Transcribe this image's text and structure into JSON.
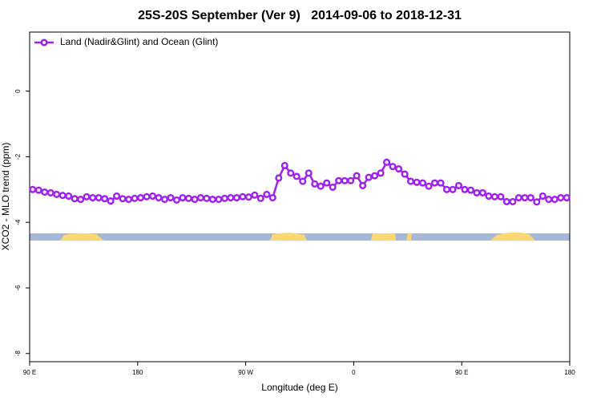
{
  "chart_data": {
    "type": "line",
    "title": "25S-20S September (Ver 9)   2014-09-06 to 2018-12-31",
    "x_label": "Longitude (deg E)",
    "y_label": "XCO2 - MLO trend (ppm)",
    "x": [
      92.5,
      97.5,
      102.5,
      107.5,
      112.5,
      117.5,
      122.5,
      127.5,
      132.5,
      137.5,
      142.5,
      147.5,
      152.5,
      157.5,
      162.5,
      167.5,
      172.5,
      177.5,
      182.5,
      187.5,
      192.5,
      197.5,
      202.5,
      207.5,
      212.5,
      217.5,
      222.5,
      227.5,
      232.5,
      237.5,
      242.5,
      247.5,
      252.5,
      257.5,
      262.5,
      267.5,
      272.5,
      277.5,
      282.5,
      287.5,
      292.5,
      297.5,
      302.5,
      307.5,
      312.5,
      317.5,
      322.5,
      327.5,
      332.5,
      337.5,
      342.5,
      347.5,
      352.5,
      357.5,
      362.5,
      367.5,
      372.5,
      377.5,
      382.5,
      387.5,
      392.5,
      397.5,
      402.5,
      407.5,
      412.5,
      417.5,
      422.5,
      427.5,
      432.5,
      437.5,
      442.5,
      447.5,
      452.5,
      457.5,
      462.5,
      467.5,
      472.5,
      477.5,
      482.5,
      487.5,
      492.5,
      497.5,
      502.5,
      507.5,
      512.5,
      517.5,
      522.5,
      527.5,
      532.5,
      537.5
    ],
    "series": [
      {
        "name": "Land (Nadir&Glint) and Ocean (Glint)",
        "color": "#a020f0",
        "values": [
          -3.0,
          -3.02,
          -3.08,
          -3.1,
          -3.15,
          -3.18,
          -3.2,
          -3.28,
          -3.3,
          -3.22,
          -3.25,
          -3.25,
          -3.28,
          -3.35,
          -3.2,
          -3.28,
          -3.3,
          -3.27,
          -3.25,
          -3.22,
          -3.2,
          -3.25,
          -3.3,
          -3.25,
          -3.32,
          -3.25,
          -3.27,
          -3.3,
          -3.25,
          -3.27,
          -3.3,
          -3.3,
          -3.27,
          -3.25,
          -3.25,
          -3.22,
          -3.23,
          -3.17,
          -3.27,
          -3.15,
          -3.25,
          -2.65,
          -2.27,
          -2.5,
          -2.6,
          -2.75,
          -2.5,
          -2.83,
          -2.9,
          -2.8,
          -2.93,
          -2.73,
          -2.73,
          -2.73,
          -2.58,
          -2.88,
          -2.63,
          -2.58,
          -2.5,
          -2.17,
          -2.3,
          -2.37,
          -2.53,
          -2.75,
          -2.78,
          -2.8,
          -2.9,
          -2.8,
          -2.8,
          -3.0,
          -3.0,
          -2.88,
          -3.0,
          -3.02,
          -3.1,
          -3.1,
          -3.2,
          -3.22,
          -3.22,
          -3.37,
          -3.37,
          -3.25,
          -3.25,
          -3.25,
          -3.38,
          -3.2,
          -3.3,
          -3.3,
          -3.25,
          -3.25
        ]
      }
    ],
    "xlim": [
      90,
      540
    ],
    "xticks": [
      {
        "value": 90,
        "label": "90 E"
      },
      180,
      {
        "value": 270,
        "label": "90 W"
      },
      {
        "value": 360,
        "label": "0"
      },
      {
        "value": 450,
        "label": "90 E"
      },
      {
        "value": 540,
        "label": "180"
      }
    ],
    "ylim": [
      -8.25,
      1.8
    ],
    "yticks": [
      -8,
      -6,
      -4,
      -2,
      0
    ],
    "legend": "top-left"
  }
}
